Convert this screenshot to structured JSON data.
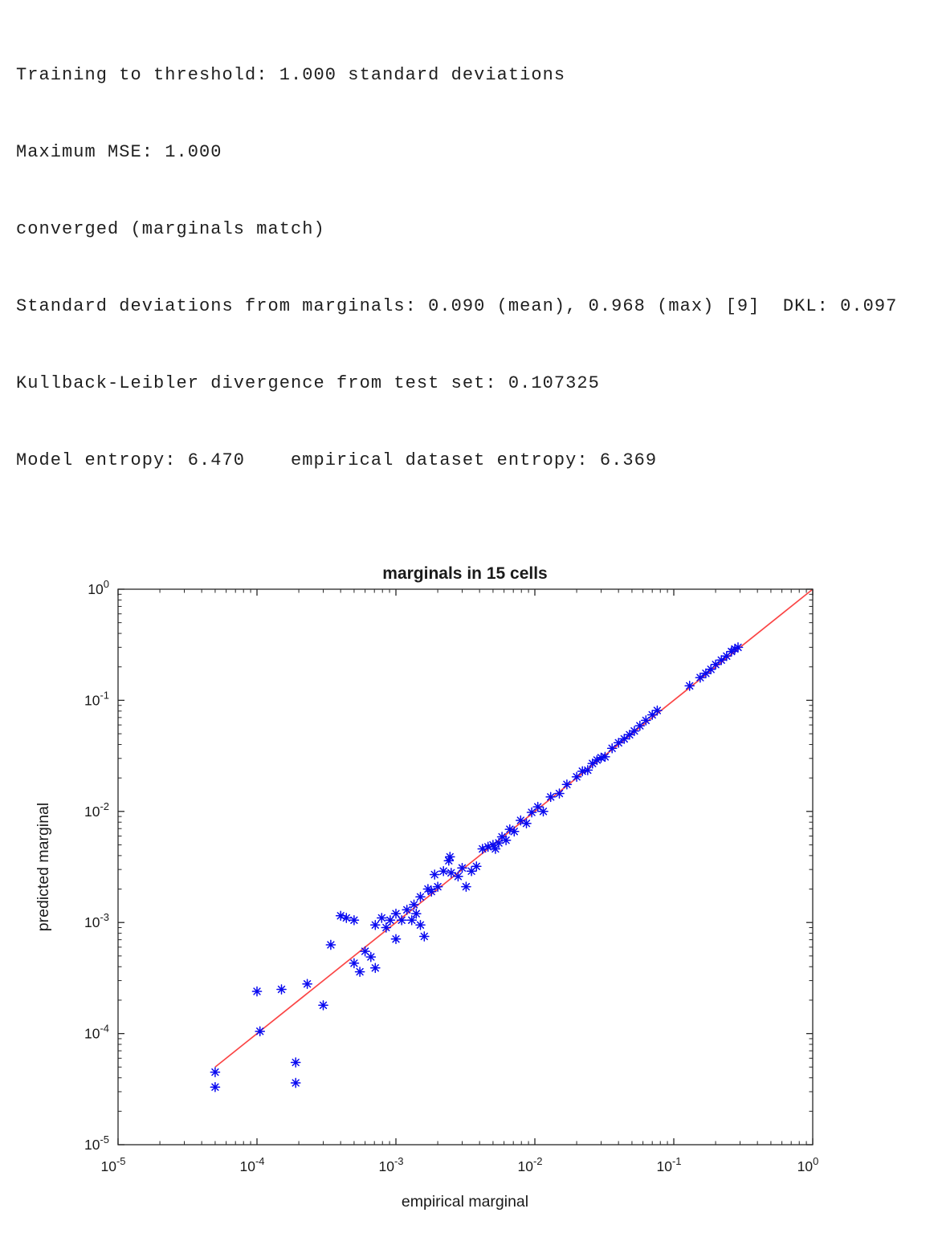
{
  "console": {
    "lines": [
      "Training to threshold: 1.000 standard deviations",
      "Maximum MSE: 1.000",
      "converged (marginals match)",
      "Standard deviations from marginals: 0.090 (mean), 0.968 (max) [9]  DKL: 0.097",
      "Kullback-Leibler divergence from test set: 0.107325",
      "Model entropy: 6.470    empirical dataset entropy: 6.369"
    ]
  },
  "chart_data": {
    "type": "scatter",
    "title": "marginals in 15 cells",
    "xlabel": "empirical marginal",
    "ylabel": "predicted marginal",
    "x_scale": "log",
    "y_scale": "log",
    "xlim": [
      1e-05,
      1
    ],
    "ylim": [
      1e-05,
      1
    ],
    "x_tick_exponents": [
      -5,
      -4,
      -3,
      -2,
      -1,
      0
    ],
    "y_tick_exponents": [
      -5,
      -4,
      -3,
      -2,
      -1,
      0
    ],
    "grid": false,
    "legend": "none",
    "marker": "asterisk",
    "marker_color": "#0a0af0",
    "axes_color": "#262626",
    "line": {
      "name": "identity-line",
      "from": [
        5e-05,
        5e-05
      ],
      "to": [
        1.0,
        1.0
      ],
      "color": "#fb4545"
    },
    "points": [
      [
        5e-05,
        4.5e-05
      ],
      [
        5e-05,
        3.3e-05
      ],
      [
        0.00019,
        5.5e-05
      ],
      [
        0.00019,
        3.6e-05
      ],
      [
        0.0001,
        0.00024
      ],
      [
        0.000105,
        0.000105
      ],
      [
        0.00015,
        0.00025
      ],
      [
        0.00023,
        0.00028
      ],
      [
        0.0003,
        0.00018
      ],
      [
        0.00034,
        0.00063
      ],
      [
        0.0004,
        0.00115
      ],
      [
        0.00044,
        0.0011
      ],
      [
        0.0005,
        0.00105
      ],
      [
        0.0005,
        0.00043
      ],
      [
        0.00055,
        0.00036
      ],
      [
        0.0006,
        0.00055
      ],
      [
        0.00066,
        0.00049
      ],
      [
        0.00071,
        0.00039
      ],
      [
        0.00071,
        0.00095
      ],
      [
        0.00079,
        0.0011
      ],
      [
        0.00085,
        0.0009
      ],
      [
        0.00091,
        0.00105
      ],
      [
        0.001,
        0.00071
      ],
      [
        0.001,
        0.0012
      ],
      [
        0.0011,
        0.00105
      ],
      [
        0.0012,
        0.0013
      ],
      [
        0.0013,
        0.00105
      ],
      [
        0.00135,
        0.00145
      ],
      [
        0.0014,
        0.0012
      ],
      [
        0.0015,
        0.0017
      ],
      [
        0.0015,
        0.00095
      ],
      [
        0.0016,
        0.00075
      ],
      [
        0.0017,
        0.002
      ],
      [
        0.0018,
        0.0019
      ],
      [
        0.0019,
        0.0027
      ],
      [
        0.002,
        0.0021
      ],
      [
        0.0022,
        0.0029
      ],
      [
        0.0024,
        0.0036
      ],
      [
        0.00245,
        0.0039
      ],
      [
        0.0025,
        0.0028
      ],
      [
        0.0028,
        0.0026
      ],
      [
        0.003,
        0.0031
      ],
      [
        0.0032,
        0.0021
      ],
      [
        0.0035,
        0.0029
      ],
      [
        0.0038,
        0.0032
      ],
      [
        0.0042,
        0.0046
      ],
      [
        0.0046,
        0.0048
      ],
      [
        0.005,
        0.005
      ],
      [
        0.0052,
        0.0046
      ],
      [
        0.0055,
        0.0052
      ],
      [
        0.0058,
        0.0059
      ],
      [
        0.0062,
        0.0055
      ],
      [
        0.0066,
        0.0069
      ],
      [
        0.0071,
        0.0066
      ],
      [
        0.0079,
        0.0083
      ],
      [
        0.0087,
        0.0078
      ],
      [
        0.0095,
        0.0098
      ],
      [
        0.0105,
        0.011
      ],
      [
        0.0115,
        0.01
      ],
      [
        0.013,
        0.0135
      ],
      [
        0.015,
        0.0145
      ],
      [
        0.017,
        0.0175
      ],
      [
        0.02,
        0.0205
      ],
      [
        0.022,
        0.023
      ],
      [
        0.024,
        0.0235
      ],
      [
        0.026,
        0.027
      ],
      [
        0.028,
        0.029
      ],
      [
        0.03,
        0.0305
      ],
      [
        0.032,
        0.031
      ],
      [
        0.036,
        0.037
      ],
      [
        0.04,
        0.0415
      ],
      [
        0.044,
        0.045
      ],
      [
        0.048,
        0.049
      ],
      [
        0.052,
        0.053
      ],
      [
        0.057,
        0.059
      ],
      [
        0.063,
        0.066
      ],
      [
        0.07,
        0.074
      ],
      [
        0.076,
        0.081
      ],
      [
        0.13,
        0.135
      ],
      [
        0.155,
        0.16
      ],
      [
        0.17,
        0.175
      ],
      [
        0.185,
        0.19
      ],
      [
        0.2,
        0.21
      ],
      [
        0.22,
        0.23
      ],
      [
        0.24,
        0.25
      ],
      [
        0.26,
        0.275
      ],
      [
        0.275,
        0.29
      ],
      [
        0.29,
        0.3
      ]
    ]
  }
}
